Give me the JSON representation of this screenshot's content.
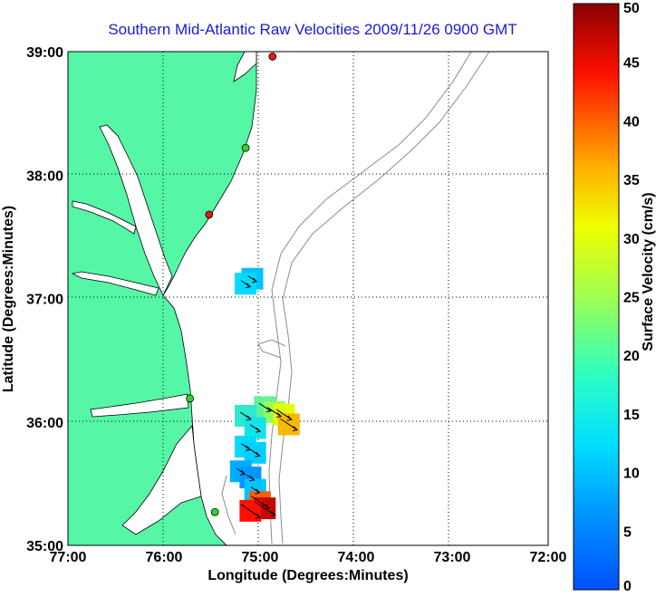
{
  "title": "Southern Mid-Atlantic Raw Velocities 2009/11/26 0900 GMT",
  "x_axis": {
    "label": "Longitude (Degrees:Minutes)",
    "ticks": [
      "77:00",
      "76:00",
      "75:00",
      "74:00",
      "73:00",
      "72:00"
    ]
  },
  "y_axis": {
    "label": "Latitude (Degrees:Minutes)",
    "ticks": [
      "39:00",
      "38:00",
      "37:00",
      "36:00",
      "35:00"
    ]
  },
  "colorbar": {
    "label": "Surface Velocity (cm/s)",
    "ticks": [
      "50",
      "45",
      "40",
      "35",
      "30",
      "25",
      "20",
      "15",
      "10",
      "5",
      "0"
    ]
  },
  "colors": {
    "land": "#55f7a6",
    "grid": "#000000",
    "bathymetry": "#8c8c8c",
    "title": "#1a1ad6",
    "station_active": "#2dd62d",
    "station_inactive": "#e01a1a"
  },
  "chart_data": {
    "type": "map",
    "projection": "lon-lat",
    "xlim": [
      -77,
      -72
    ],
    "ylim": [
      35,
      39
    ],
    "grid": true,
    "stations": [
      {
        "lon": -74.87,
        "lat": 38.96,
        "status": "inactive"
      },
      {
        "lon": -75.15,
        "lat": 38.22,
        "status": "active"
      },
      {
        "lon": -75.53,
        "lat": 37.68,
        "status": "inactive"
      },
      {
        "lon": -75.73,
        "lat": 36.19,
        "status": "active"
      },
      {
        "lon": -75.47,
        "lat": 35.27,
        "status": "active"
      }
    ],
    "velocity_patches": [
      {
        "lon": -75.08,
        "lat": 37.16,
        "speed": 10
      },
      {
        "lon": -75.15,
        "lat": 37.12,
        "speed": 12
      },
      {
        "lon": -74.95,
        "lat": 36.12,
        "speed": 20
      },
      {
        "lon": -74.85,
        "lat": 36.08,
        "speed": 24
      },
      {
        "lon": -74.75,
        "lat": 36.06,
        "speed": 30
      },
      {
        "lon": -74.7,
        "lat": 35.98,
        "speed": 35
      },
      {
        "lon": -75.15,
        "lat": 36.05,
        "speed": 16
      },
      {
        "lon": -75.05,
        "lat": 35.95,
        "speed": 14
      },
      {
        "lon": -75.15,
        "lat": 35.8,
        "speed": 12
      },
      {
        "lon": -75.05,
        "lat": 35.75,
        "speed": 11
      },
      {
        "lon": -75.2,
        "lat": 35.6,
        "speed": 8
      },
      {
        "lon": -75.1,
        "lat": 35.55,
        "speed": 6
      },
      {
        "lon": -75.05,
        "lat": 35.45,
        "speed": 10
      },
      {
        "lon": -75.0,
        "lat": 35.35,
        "speed": 40
      },
      {
        "lon": -74.95,
        "lat": 35.3,
        "speed": 47
      },
      {
        "lon": -75.1,
        "lat": 35.28,
        "speed": 44
      }
    ]
  }
}
